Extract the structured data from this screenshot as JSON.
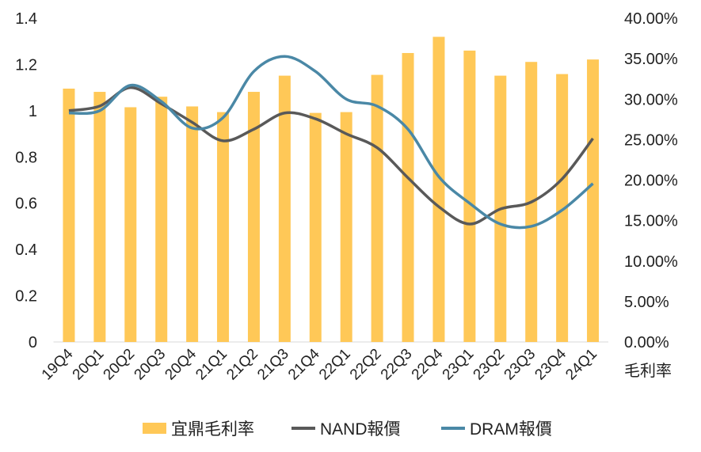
{
  "chart_data": {
    "type": "bar+line",
    "categories": [
      "19Q4",
      "20Q1",
      "20Q2",
      "20Q3",
      "20Q4",
      "21Q1",
      "21Q2",
      "21Q3",
      "21Q4",
      "22Q1",
      "22Q2",
      "22Q3",
      "22Q4",
      "23Q1",
      "23Q2",
      "23Q3",
      "23Q4",
      "24Q1"
    ],
    "series": [
      {
        "name": "宜鼎毛利率",
        "type": "bar",
        "axis": "right",
        "color": "#FFC857",
        "values": [
          31.3,
          30.9,
          29.0,
          30.3,
          29.1,
          28.4,
          30.9,
          32.9,
          28.3,
          28.4,
          33.0,
          35.7,
          37.7,
          36.0,
          32.9,
          34.6,
          33.1,
          34.9
        ]
      },
      {
        "name": "NAND報價",
        "type": "line",
        "axis": "left",
        "color": "#595959",
        "values": [
          1.0,
          1.02,
          1.1,
          1.03,
          0.95,
          0.87,
          0.92,
          0.99,
          0.965,
          0.9,
          0.84,
          0.71,
          0.585,
          0.51,
          0.575,
          0.605,
          0.705,
          0.88
        ]
      },
      {
        "name": "DRAM報價",
        "type": "line",
        "axis": "left",
        "color": "#4A88A6",
        "values": [
          0.99,
          1.0,
          1.11,
          1.04,
          0.925,
          0.97,
          1.17,
          1.235,
          1.17,
          1.05,
          1.02,
          0.92,
          0.715,
          0.6,
          0.51,
          0.5,
          0.57,
          0.685
        ]
      }
    ],
    "left_axis": {
      "ylim": [
        0,
        1.4
      ],
      "ticks": [
        "0",
        "0.2",
        "0.4",
        "0.6",
        "0.8",
        "1",
        "1.2",
        "1.4"
      ]
    },
    "right_axis": {
      "ylim": [
        0,
        40
      ],
      "label": "毛利率",
      "ticks": [
        "0.00%",
        "5.00%",
        "10.00%",
        "15.00%",
        "20.00%",
        "25.00%",
        "30.00%",
        "35.00%",
        "40.00%"
      ]
    },
    "legend": "bottom",
    "grid": false
  }
}
